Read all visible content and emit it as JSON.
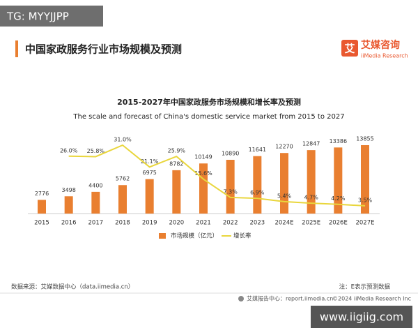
{
  "top_tag": "TG: MYYJJPP",
  "header": {
    "title": "中国家政服务行业市场规模及预测",
    "logo_icon": "艾",
    "logo_cn": "艾媒咨询",
    "logo_en": "iiMedia Research"
  },
  "chart_data": {
    "type": "bar",
    "title": "2015-2027年中国家政服务市场规模和增长率及预测",
    "subtitle": "The scale and forecast of China's domestic service market from 2015 to 2027",
    "categories": [
      "2015",
      "2016",
      "2017",
      "2018",
      "2019",
      "2020",
      "2021",
      "2022",
      "2023",
      "2024E",
      "2025E",
      "2026E",
      "2027E"
    ],
    "series": [
      {
        "name": "市场规模（亿元）",
        "type": "bar",
        "color": "#e97f30",
        "values": [
          2776,
          3498,
          4400,
          5762,
          6975,
          8782,
          10149,
          10890,
          11641,
          12270,
          12847,
          13386,
          13855
        ]
      },
      {
        "name": "增长率",
        "type": "line",
        "color": "#e9d63c",
        "values": [
          null,
          26.0,
          25.8,
          31.0,
          21.1,
          25.9,
          15.6,
          7.3,
          6.9,
          5.4,
          4.7,
          4.2,
          3.5
        ],
        "value_labels": [
          null,
          "26.0%",
          "25.8%",
          "31.0%",
          "21.1%",
          "25.9%",
          "15.6%",
          "7.3%",
          "6.9%",
          "5.4%",
          "4.7%",
          "4.2%",
          "3.5%"
        ]
      }
    ]
  },
  "footer": {
    "source": "数据来源：艾媒数据中心（data.iimedia.cn）",
    "note": "注：E表示预测数据",
    "credit_site": "艾媒报告中心：report.iimedia.cn",
    "credit_copy": "©2024 iiMedia Research Inc",
    "watermark": "www.iigiig.com"
  }
}
